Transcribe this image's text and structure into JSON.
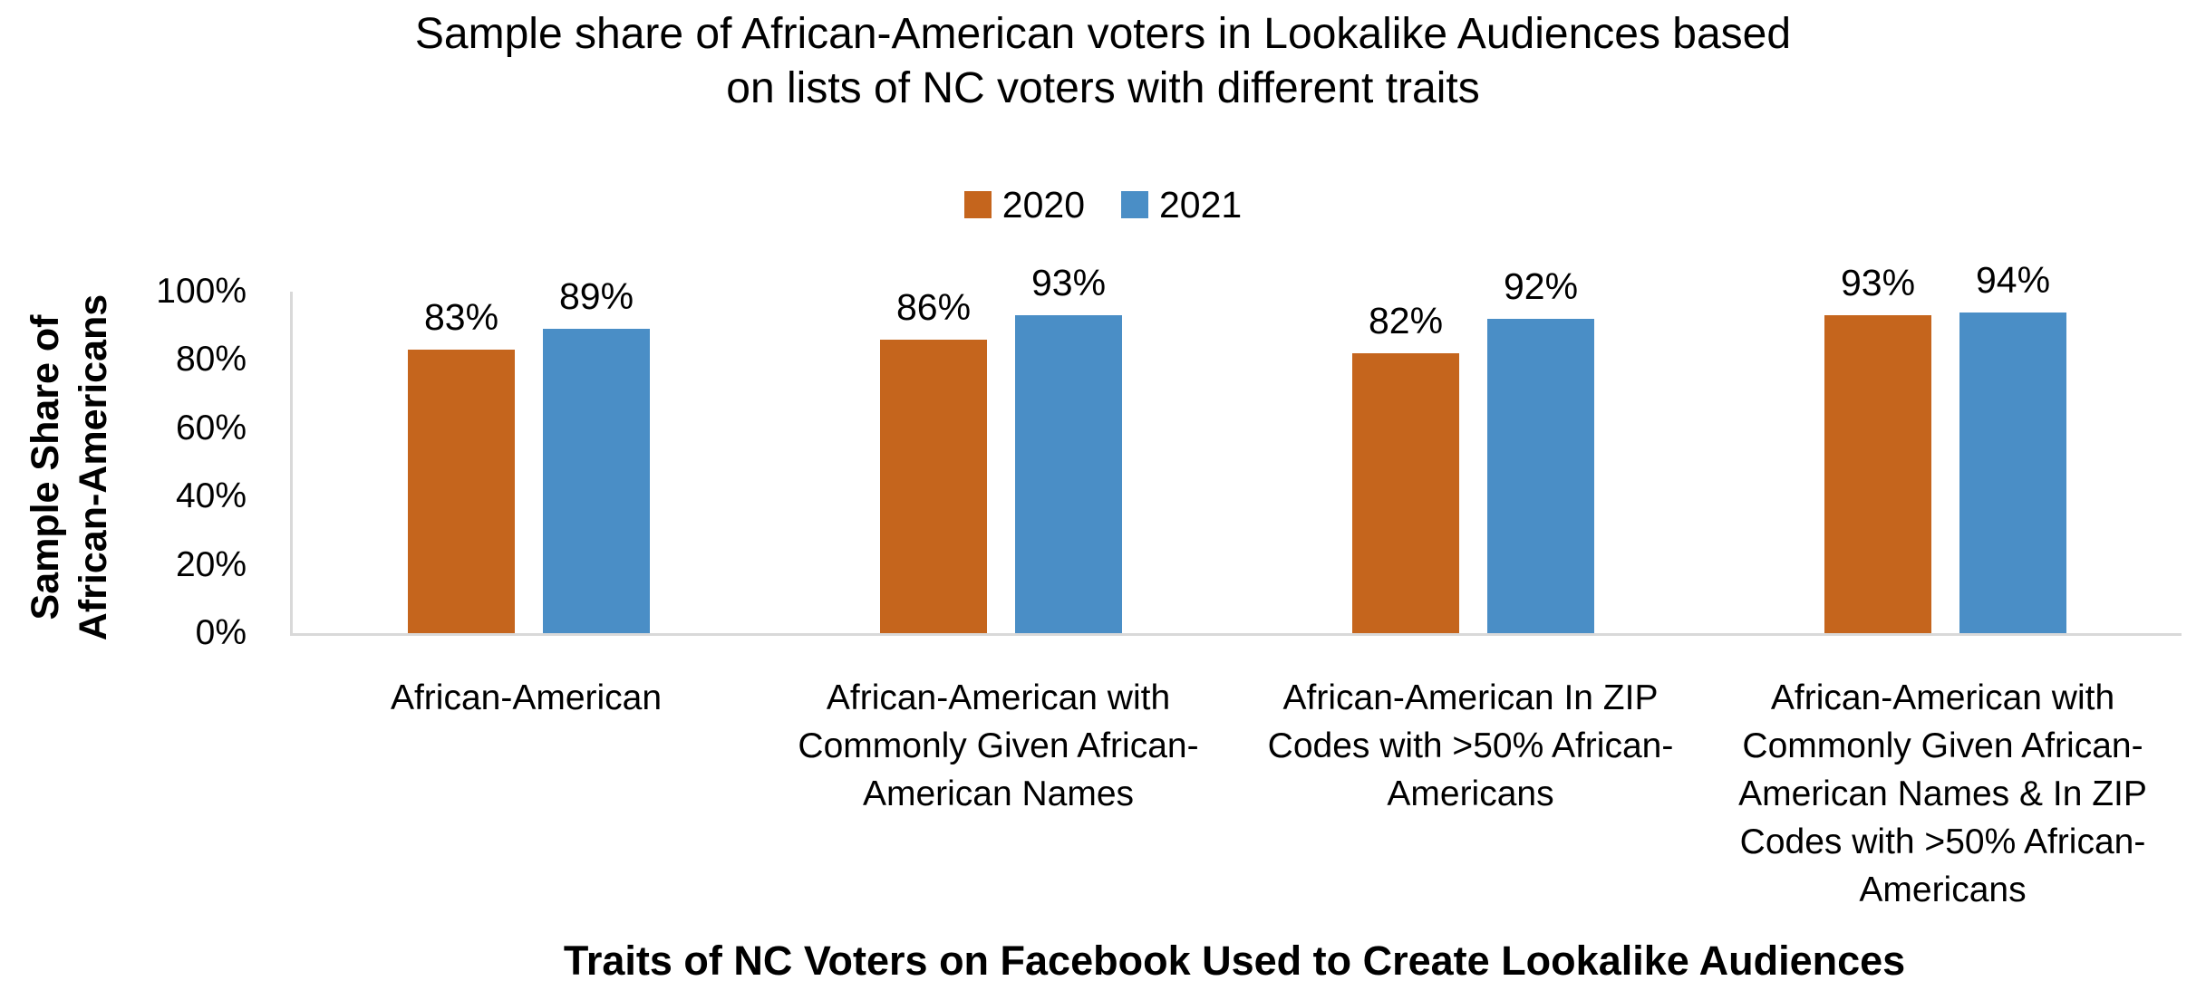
{
  "display": {
    "title": "Sample share of African-American voters in Lookalike Audiences based\non lists of NC voters with different traits",
    "y_axis_title": "Sample Share of\nAfrican-Americans"
  },
  "chart_data": {
    "type": "bar",
    "title": "Sample share of African-American voters in Lookalike Audiences based on lists of NC voters with different traits",
    "xlabel": "Traits of NC Voters on Facebook Used to Create Lookalike Audiences",
    "ylabel": "Sample Share of African-Americans",
    "categories": [
      "African-American",
      "African-American with Commonly Given African-American Names",
      "African-American In ZIP Codes with >50% African-Americans",
      "African-American with Commonly Given African-American Names & In ZIP Codes with >50% African-Americans"
    ],
    "categories_lines": [
      [
        "African-American"
      ],
      [
        "African-American with",
        "Commonly Given African-",
        "American Names"
      ],
      [
        "African-American In ZIP",
        "Codes with >50% African-",
        "Americans"
      ],
      [
        "African-American with",
        "Commonly Given African-",
        "American Names & In ZIP",
        "Codes with >50% African-",
        "Americans"
      ]
    ],
    "series": [
      {
        "name": "2020",
        "color": "#C5651D",
        "values": [
          83,
          86,
          82,
          93
        ]
      },
      {
        "name": "2021",
        "color": "#4A8EC6",
        "values": [
          89,
          93,
          92,
          94
        ]
      }
    ],
    "value_suffix": "%",
    "ylim": [
      0,
      100
    ],
    "yticks": [
      "0%",
      "20%",
      "40%",
      "60%",
      "80%",
      "100%"
    ],
    "grid": false,
    "legend_position": "top-center",
    "data_labels": true,
    "axis_line_color": "#D9D9D9"
  }
}
